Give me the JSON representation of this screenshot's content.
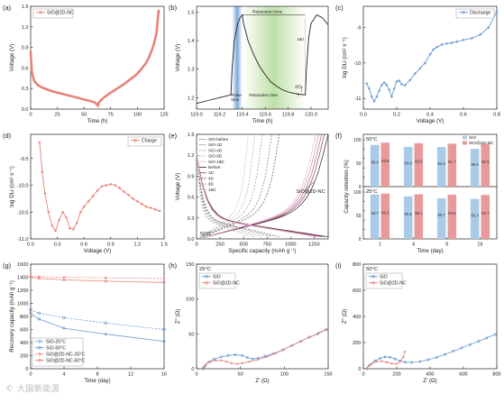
{
  "watermark": "© 大国新能源",
  "chart_data": [
    {
      "id": "a",
      "panel_label": "(a)",
      "type": "line",
      "xlabel": "Time (h)",
      "ylabel": "Voltage (V)",
      "xlim": [
        0,
        125
      ],
      "ylim": [
        0,
        1.5
      ],
      "xticks": [
        0,
        25,
        50,
        75,
        100,
        125
      ],
      "yticks": [
        0.0,
        0.3,
        0.6,
        0.9,
        1.2,
        1.5
      ],
      "legend": "top-left",
      "series": [
        {
          "name": "SiO@2D-NC",
          "color": "#e8827a",
          "x": [
            0,
            1,
            3,
            6,
            10,
            15,
            20,
            25,
            30,
            35,
            40,
            45,
            50,
            55,
            60,
            63,
            64,
            68,
            73,
            78,
            83,
            88,
            93,
            98,
            103,
            108,
            111,
            114,
            116,
            118,
            119,
            120
          ],
          "y": [
            0.85,
            0.55,
            0.42,
            0.36,
            0.32,
            0.29,
            0.26,
            0.24,
            0.22,
            0.2,
            0.18,
            0.16,
            0.14,
            0.12,
            0.1,
            0.05,
            0.1,
            0.16,
            0.22,
            0.27,
            0.32,
            0.37,
            0.43,
            0.49,
            0.57,
            0.67,
            0.76,
            0.88,
            0.98,
            1.12,
            1.3,
            1.45
          ]
        }
      ]
    },
    {
      "id": "b",
      "panel_label": "(b)",
      "type": "line",
      "xlabel": "Time (h)",
      "ylabel": "Voltage (V)",
      "xlim": [
        119.0,
        120.15
      ],
      "ylim": [
        1.16,
        1.52
      ],
      "xticks": [
        119.0,
        119.2,
        119.4,
        119.6,
        119.8,
        120.0
      ],
      "yticks": [
        1.2,
        1.3,
        1.4,
        1.5
      ],
      "shaded_regions": [
        {
          "label": "Pulse time",
          "x": [
            119.31,
            119.4
          ],
          "color": "#7fa8dc"
        },
        {
          "label": "Relaxation time",
          "x": [
            119.4,
            119.95
          ],
          "color": "#bfe0a8"
        }
      ],
      "annotations": [
        "Relaxation time",
        "Pulse time",
        "τ",
        "ΔEs",
        "ΔEt"
      ],
      "series": [
        {
          "name": "",
          "color": "#222222",
          "x": [
            119.0,
            119.1,
            119.2,
            119.3,
            119.31,
            119.33,
            119.36,
            119.38,
            119.4,
            119.41,
            119.45,
            119.5,
            119.55,
            119.6,
            119.65,
            119.7,
            119.75,
            119.8,
            119.85,
            119.9,
            119.95,
            119.96,
            119.98,
            120.0,
            120.05,
            120.1,
            120.15
          ],
          "y": [
            1.18,
            1.19,
            1.2,
            1.21,
            1.3,
            1.4,
            1.46,
            1.48,
            1.49,
            1.46,
            1.4,
            1.35,
            1.31,
            1.28,
            1.255,
            1.24,
            1.228,
            1.22,
            1.215,
            1.212,
            1.21,
            1.3,
            1.41,
            1.46,
            1.49,
            1.48,
            1.455
          ]
        }
      ]
    },
    {
      "id": "c",
      "panel_label": "(c)",
      "type": "line",
      "xlabel": "Voltage (V)",
      "ylabel": "log DLi (cm² s⁻¹)",
      "xlim": [
        0.0,
        0.8
      ],
      "ylim": [
        -11.3,
        -8.4
      ],
      "xticks": [
        0.0,
        0.2,
        0.4,
        0.6,
        0.8
      ],
      "yticks": [
        -11,
        -10,
        -9
      ],
      "legend": "top-right",
      "series": [
        {
          "name": "Discharge",
          "color": "#6b9bd1",
          "x": [
            0.02,
            0.035,
            0.05,
            0.065,
            0.08,
            0.095,
            0.11,
            0.125,
            0.14,
            0.155,
            0.17,
            0.185,
            0.2,
            0.215,
            0.23,
            0.25,
            0.28,
            0.31,
            0.34,
            0.37,
            0.4,
            0.42,
            0.44,
            0.47,
            0.5,
            0.53,
            0.56,
            0.6,
            0.65,
            0.7,
            0.75,
            0.8
          ],
          "y": [
            -10.58,
            -10.72,
            -10.95,
            -11.08,
            -10.95,
            -10.78,
            -10.62,
            -10.55,
            -10.62,
            -10.75,
            -10.95,
            -10.72,
            -10.52,
            -10.5,
            -10.6,
            -10.63,
            -10.48,
            -10.3,
            -10.15,
            -10.0,
            -9.75,
            -9.62,
            -9.55,
            -9.48,
            -9.45,
            -9.43,
            -9.4,
            -9.35,
            -9.3,
            -9.2,
            -9.0,
            -8.55
          ]
        }
      ]
    },
    {
      "id": "d",
      "panel_label": "(d)",
      "type": "line",
      "xlabel": "Voltage (V)",
      "ylabel": "log DLi (cm² s⁻¹)",
      "xlim": [
        0.0,
        1.5
      ],
      "ylim": [
        -11.0,
        -9.05
      ],
      "xticks": [
        0.0,
        0.3,
        0.6,
        0.9,
        1.2,
        1.5
      ],
      "yticks": [
        -11.0,
        -10.5,
        -10.0,
        -9.5
      ],
      "legend": "top-right",
      "series": [
        {
          "name": "Charge",
          "color": "#e8827a",
          "x": [
            0.1,
            0.13,
            0.16,
            0.2,
            0.24,
            0.28,
            0.32,
            0.36,
            0.4,
            0.44,
            0.48,
            0.52,
            0.56,
            0.6,
            0.65,
            0.7,
            0.75,
            0.8,
            0.85,
            0.9,
            0.95,
            1.0,
            1.05,
            1.1,
            1.15,
            1.2,
            1.25,
            1.3,
            1.35,
            1.4,
            1.45
          ],
          "y": [
            -9.2,
            -9.75,
            -10.15,
            -10.5,
            -10.75,
            -10.85,
            -10.65,
            -10.5,
            -10.6,
            -10.8,
            -10.82,
            -10.7,
            -10.5,
            -10.4,
            -10.3,
            -10.2,
            -10.1,
            -10.02,
            -10.0,
            -9.98,
            -10.0,
            -10.05,
            -10.12,
            -10.18,
            -10.25,
            -10.3,
            -10.35,
            -10.4,
            -10.42,
            -10.45,
            -10.48
          ]
        }
      ]
    },
    {
      "id": "e",
      "panel_label": "(e)",
      "type": "line",
      "xlabel": "Specific capacity (mAh g⁻¹)",
      "ylabel": "Voltage (V)",
      "xlim": [
        0,
        1400
      ],
      "ylim": [
        0.0,
        1.5
      ],
      "xticks": [
        0,
        250,
        500,
        750,
        1000,
        1250
      ],
      "yticks": [
        0.0,
        0.3,
        0.6,
        0.9,
        1.2,
        1.5
      ],
      "annotations": [
        "50°C",
        "SiO@2D-NC"
      ],
      "legend_columns": [
        {
          "label": "SiO-before",
          "style": "dashed"
        },
        {
          "label": "SiO-1D",
          "style": "dashed"
        },
        {
          "label": "SiO-4D",
          "style": "dashed"
        },
        {
          "label": "SiO-9D",
          "style": "dashed"
        },
        {
          "label": "SiO-16D",
          "style": "dashed"
        },
        {
          "label": "Before",
          "style": "solid"
        },
        {
          "label": "1D",
          "style": "solid"
        },
        {
          "label": "4D",
          "style": "solid"
        },
        {
          "label": "9D",
          "style": "solid"
        },
        {
          "label": "16D",
          "style": "solid"
        }
      ],
      "series": [
        {
          "name": "SiO-before",
          "color": "#555555",
          "dash": true,
          "cap": 880
        },
        {
          "name": "SiO-1D",
          "color": "#777777",
          "dash": true,
          "cap": 800
        },
        {
          "name": "SiO-4D",
          "color": "#999999",
          "dash": true,
          "cap": 700
        },
        {
          "name": "SiO-9D",
          "color": "#aaaaaa",
          "dash": true,
          "cap": 620
        },
        {
          "name": "SiO-16D",
          "color": "#bbbbbb",
          "dash": true,
          "cap": 550
        },
        {
          "name": "Before",
          "color": "#222222",
          "dash": false,
          "cap": 1400
        },
        {
          "name": "1D",
          "color": "#8a3b6a",
          "dash": false,
          "cap": 1360
        },
        {
          "name": "4D",
          "color": "#b4628c",
          "dash": false,
          "cap": 1330
        },
        {
          "name": "9D",
          "color": "#cf8fae",
          "dash": false,
          "cap": 1300
        },
        {
          "name": "16D",
          "color": "#e3b5cb",
          "dash": false,
          "cap": 1270
        }
      ]
    },
    {
      "id": "f",
      "panel_label": "(f)",
      "type": "bar",
      "xlabel": "Time (day)",
      "ylabel": "Capacity retention (%)",
      "categories": [
        "1",
        "4",
        "9",
        "16"
      ],
      "ylim": [
        0,
        100
      ],
      "legend": "top-right",
      "subpanels": [
        {
          "title": "50°C",
          "series": [
            {
              "name": "SiO",
              "color": "#a9cbe8",
              "values": [
                89.0,
                84.8,
                84.5,
                80.6
              ]
            },
            {
              "name": "SiO@2D-NC",
              "color": "#e89a9a",
              "values": [
                93.8,
                92.5,
                91.7,
                91.5
              ]
            }
          ]
        },
        {
          "title": "25°C",
          "series": [
            {
              "name": "SiO",
              "color": "#a9cbe8",
              "values": [
                94.7,
                90.6,
                86.7,
                85.4
              ]
            },
            {
              "name": "SiO@2D-NC",
              "color": "#e89a9a",
              "values": [
                96.6,
                95.1,
                94.5,
                93.7
              ]
            }
          ]
        }
      ]
    },
    {
      "id": "g",
      "panel_label": "(g)",
      "type": "line",
      "xlabel": "Time (day)",
      "ylabel": "Recovery capacity (mAh g⁻¹)",
      "xlim": [
        0,
        16
      ],
      "ylim": [
        0,
        1600
      ],
      "xticks": [
        0,
        4,
        8,
        12,
        16
      ],
      "yticks": [
        0,
        200,
        400,
        600,
        800,
        1000,
        1200,
        1400,
        1600
      ],
      "legend": "bottom-left",
      "series": [
        {
          "name": "SiO-25°C",
          "color": "#6b9bd1",
          "dash": true,
          "x": [
            0,
            1,
            4,
            9,
            16
          ],
          "y": [
            900,
            850,
            780,
            700,
            600
          ]
        },
        {
          "name": "SiO-50°C",
          "color": "#6b9bd1",
          "dash": false,
          "x": [
            0,
            1,
            4,
            9,
            16
          ],
          "y": [
            850,
            760,
            620,
            530,
            420
          ]
        },
        {
          "name": "SiO@2D-NC-25°C",
          "color": "#e8827a",
          "dash": true,
          "x": [
            0,
            1,
            4,
            9,
            16
          ],
          "y": [
            1420,
            1410,
            1400,
            1390,
            1380
          ]
        },
        {
          "name": "SiO@2D-NC-50°C",
          "color": "#e8827a",
          "dash": false,
          "x": [
            0,
            1,
            4,
            9,
            16
          ],
          "y": [
            1400,
            1380,
            1360,
            1340,
            1320
          ]
        }
      ]
    },
    {
      "id": "h",
      "panel_label": "(h)",
      "type": "scatter",
      "xlabel": "Z' (Ω)",
      "ylabel": "Z'' (Ω)",
      "xlim": [
        0,
        150
      ],
      "ylim": [
        0,
        150
      ],
      "xticks": [
        0,
        50,
        100,
        150
      ],
      "yticks": [
        0,
        50,
        100,
        150
      ],
      "annotations": [
        "25°C"
      ],
      "legend": "top-left",
      "series": [
        {
          "name": "SiO",
          "color": "#6b9bd1",
          "x": [
            8,
            10,
            14,
            20,
            28,
            36,
            44,
            52,
            58,
            64,
            70,
            78,
            88,
            98,
            108,
            118,
            128,
            138,
            148
          ],
          "y": [
            0,
            4,
            10,
            14,
            17,
            19,
            20,
            19,
            16,
            14,
            15,
            18,
            22,
            27,
            33,
            39,
            45,
            50,
            56
          ]
        },
        {
          "name": "SiO@2D-NC",
          "color": "#e8827a",
          "x": [
            6,
            8,
            11,
            16,
            22,
            28,
            34,
            40,
            46,
            52,
            60,
            70,
            80,
            90,
            100,
            110,
            120,
            130,
            140,
            148
          ],
          "y": [
            0,
            3,
            7,
            10,
            12,
            12,
            10,
            8,
            7,
            8,
            10,
            13,
            17,
            22,
            28,
            34,
            40,
            46,
            52,
            57
          ]
        }
      ]
    },
    {
      "id": "i",
      "panel_label": "(i)",
      "type": "scatter",
      "xlabel": "Z' (Ω)",
      "ylabel": "Z'' (Ω)",
      "xlim": [
        0,
        800
      ],
      "ylim": [
        0,
        800
      ],
      "xticks": [
        0,
        200,
        400,
        600,
        800
      ],
      "yticks": [
        0,
        200,
        400,
        600,
        800
      ],
      "annotations": [
        "50°C"
      ],
      "legend": "top-left",
      "series": [
        {
          "name": "SiO",
          "color": "#6b9bd1",
          "x": [
            20,
            40,
            70,
            100,
            130,
            160,
            190,
            220,
            250,
            290,
            340,
            390,
            440,
            490,
            540,
            590,
            640,
            690,
            740,
            790
          ],
          "y": [
            0,
            30,
            60,
            80,
            90,
            88,
            75,
            60,
            50,
            48,
            55,
            70,
            88,
            110,
            135,
            160,
            185,
            210,
            235,
            262
          ]
        },
        {
          "name": "SiO@2D-NC",
          "color": "#e8827a",
          "x": [
            15,
            30,
            50,
            80,
            110,
            140,
            170,
            200,
            220,
            240,
            248
          ],
          "y": [
            0,
            20,
            40,
            55,
            58,
            50,
            40,
            38,
            55,
            90,
            130
          ]
        }
      ]
    }
  ]
}
